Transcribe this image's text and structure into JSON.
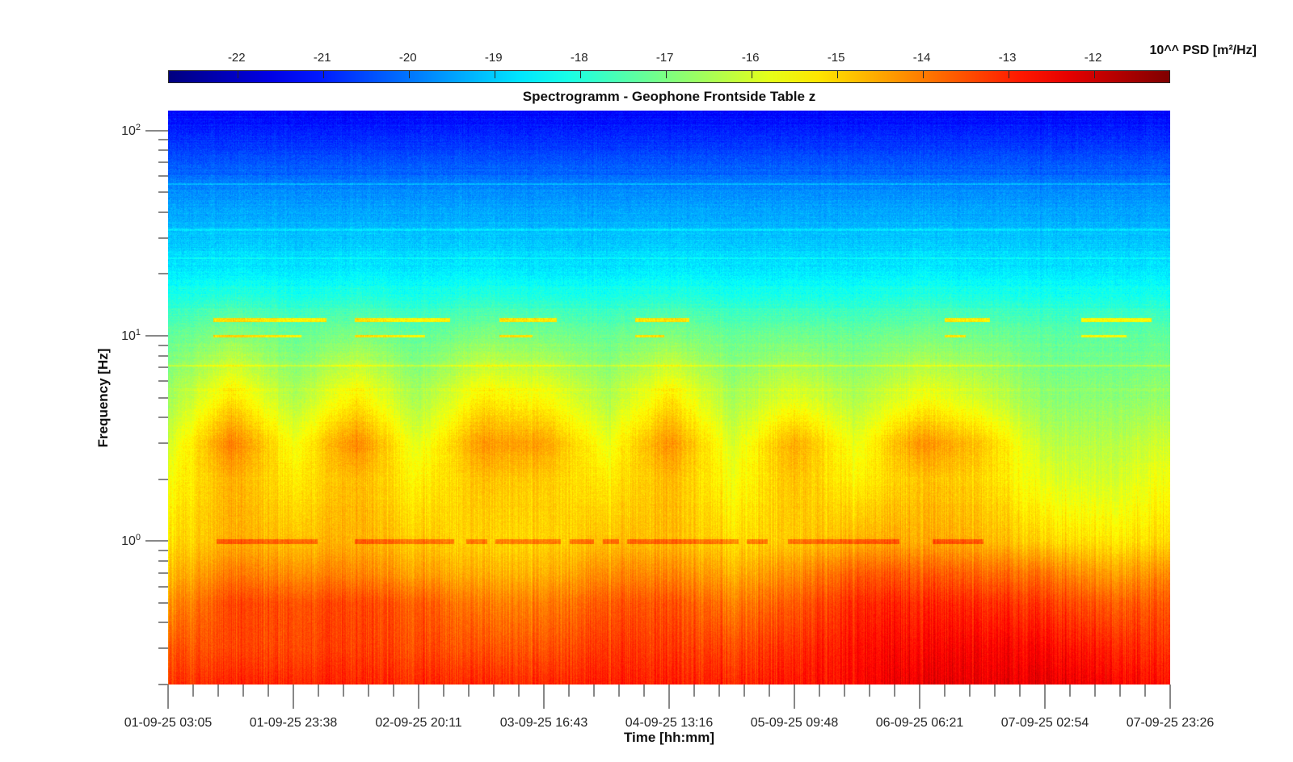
{
  "chart_data": {
    "type": "heatmap",
    "title": "Spectrogramm - Geophone Frontside Table z",
    "xlabel": "Time [hh:mm]",
    "ylabel": "Frequency [Hz]",
    "y_scale": "log",
    "ylim": [
      0.2,
      125
    ],
    "x_ticks": [
      "01-09-25 03:05",
      "01-09-25 23:38",
      "02-09-25 20:11",
      "03-09-25 16:43",
      "04-09-25 13:16",
      "05-09-25 09:48",
      "06-09-25 06:21",
      "07-09-25 02:54",
      "07-09-25 23:26"
    ],
    "y_ticks": [
      {
        "value": 1,
        "base": "10",
        "exponent": "0"
      },
      {
        "value": 10,
        "base": "10",
        "exponent": "1"
      },
      {
        "value": 100,
        "base": "10",
        "exponent": "2"
      }
    ],
    "colorbar": {
      "label": "10^^ PSD [m²/Hz]",
      "colormap": "jet",
      "clim": [
        -22.8,
        -11.1
      ],
      "ticks": [
        "-22",
        "-21",
        "-20",
        "-19",
        "-18",
        "-17",
        "-16",
        "-15",
        "-14",
        "-13",
        "-12"
      ],
      "location": "top"
    },
    "grid": false,
    "z_time": [
      "01-09-25 03:05",
      "01-09-25 13:21",
      "01-09-25 23:38",
      "02-09-25 09:54",
      "02-09-25 20:11",
      "03-09-25 06:27",
      "03-09-25 16:43",
      "04-09-25 02:59",
      "04-09-25 13:16",
      "04-09-25 23:32",
      "05-09-25 09:48",
      "05-09-25 20:04",
      "06-09-25 06:21",
      "06-09-25 16:37",
      "07-09-25 02:54",
      "07-09-25 13:10",
      "07-09-25 23:26"
    ],
    "z_freq_hz": [
      0.2,
      0.3,
      0.5,
      0.7,
      1,
      2,
      3,
      5,
      10,
      20,
      50,
      100,
      125
    ],
    "z_log10_psd": [
      [
        -13.2,
        -13.0,
        -13.0,
        -13.0,
        -13.0,
        -13.0,
        -13.0,
        -12.9,
        -12.9,
        -13.0,
        -12.8,
        -12.6,
        -12.3,
        -12.3,
        -12.3,
        -12.5,
        -12.8
      ],
      [
        -13.6,
        -13.4,
        -13.4,
        -13.3,
        -13.4,
        -13.5,
        -13.5,
        -13.2,
        -13.2,
        -13.4,
        -13.1,
        -12.7,
        -12.6,
        -12.5,
        -12.6,
        -12.9,
        -13.2
      ],
      [
        -14.3,
        -13.4,
        -13.5,
        -13.4,
        -13.6,
        -14.0,
        -14.0,
        -13.6,
        -13.5,
        -14.0,
        -13.6,
        -13.0,
        -13.0,
        -13.0,
        -13.2,
        -13.6,
        -13.6
      ],
      [
        -14.8,
        -14.0,
        -14.2,
        -14.1,
        -14.4,
        -14.6,
        -14.6,
        -14.2,
        -14.1,
        -14.6,
        -14.2,
        -13.6,
        -13.6,
        -13.7,
        -13.9,
        -14.4,
        -14.2
      ],
      [
        -15.2,
        -14.6,
        -14.8,
        -14.6,
        -14.9,
        -15.0,
        -15.0,
        -14.8,
        -14.7,
        -15.1,
        -14.9,
        -14.6,
        -14.5,
        -14.6,
        -15.0,
        -15.2,
        -15.1
      ],
      [
        -15.6,
        -14.6,
        -15.3,
        -14.7,
        -15.4,
        -14.8,
        -14.9,
        -15.3,
        -14.7,
        -15.6,
        -14.8,
        -15.4,
        -14.8,
        -15.0,
        -15.8,
        -16.0,
        -15.6
      ],
      [
        -16.0,
        -14.0,
        -15.6,
        -14.1,
        -15.8,
        -14.3,
        -14.4,
        -15.7,
        -14.2,
        -15.9,
        -14.5,
        -15.7,
        -14.2,
        -14.8,
        -16.2,
        -16.3,
        -16.0
      ],
      [
        -16.6,
        -15.2,
        -16.4,
        -15.3,
        -16.5,
        -15.3,
        -15.5,
        -16.4,
        -15.2,
        -16.5,
        -15.8,
        -16.4,
        -15.6,
        -16.0,
        -16.8,
        -16.8,
        -16.7
      ],
      [
        -17.3,
        -16.8,
        -17.2,
        -16.9,
        -17.3,
        -16.9,
        -17.0,
        -17.2,
        -16.9,
        -17.2,
        -17.1,
        -17.2,
        -17.0,
        -17.1,
        -17.3,
        -17.3,
        -17.3
      ],
      [
        -18.6,
        -18.5,
        -18.6,
        -18.5,
        -18.6,
        -18.5,
        -18.6,
        -18.6,
        -18.5,
        -18.6,
        -18.6,
        -18.6,
        -18.5,
        -18.6,
        -18.6,
        -18.6,
        -18.6
      ],
      [
        -19.7,
        -19.7,
        -19.7,
        -19.7,
        -19.7,
        -19.7,
        -19.7,
        -19.7,
        -19.7,
        -19.7,
        -19.7,
        -19.7,
        -19.7,
        -19.7,
        -19.7,
        -19.7,
        -19.7
      ],
      [
        -21.0,
        -21.0,
        -21.0,
        -21.0,
        -21.0,
        -21.0,
        -21.0,
        -21.0,
        -21.0,
        -21.0,
        -21.0,
        -21.0,
        -21.0,
        -21.0,
        -21.0,
        -21.0,
        -21.0
      ],
      [
        -21.3,
        -21.3,
        -21.3,
        -21.3,
        -21.3,
        -21.3,
        -21.3,
        -21.3,
        -21.3,
        -21.3,
        -21.3,
        -21.3,
        -21.3,
        -21.3,
        -21.3,
        -21.3,
        -21.3
      ]
    ]
  }
}
